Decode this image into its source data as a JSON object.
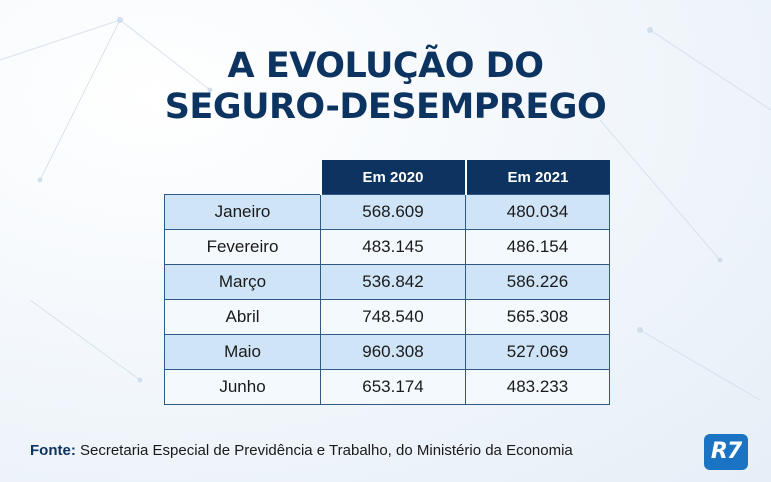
{
  "chart_data": {
    "type": "table",
    "title_lines": [
      "A EVOLUÇÃO DO",
      "SEGURO-DESEMPREGO"
    ],
    "columns": [
      "Em 2020",
      "Em 2021"
    ],
    "rows": [
      {
        "label": "Janeiro",
        "values": [
          "568.609",
          "480.034"
        ]
      },
      {
        "label": "Fevereiro",
        "values": [
          "483.145",
          "486.154"
        ]
      },
      {
        "label": "Março",
        "values": [
          "536.842",
          "586.226"
        ]
      },
      {
        "label": "Abril",
        "values": [
          "748.540",
          "565.308"
        ]
      },
      {
        "label": "Maio",
        "values": [
          "960.308",
          "527.069"
        ]
      },
      {
        "label": "Junho",
        "values": [
          "653.174",
          "483.233"
        ]
      }
    ]
  },
  "source": {
    "label": "Fonte:",
    "text": "Secretaria Especial de Previdência e Trabalho, do Ministério da Economia"
  },
  "logo": {
    "text": "R7"
  },
  "colors": {
    "navy": "#0d3460",
    "row_light_blue": "#cfe4f7",
    "logo_blue": "#1b73c4"
  }
}
